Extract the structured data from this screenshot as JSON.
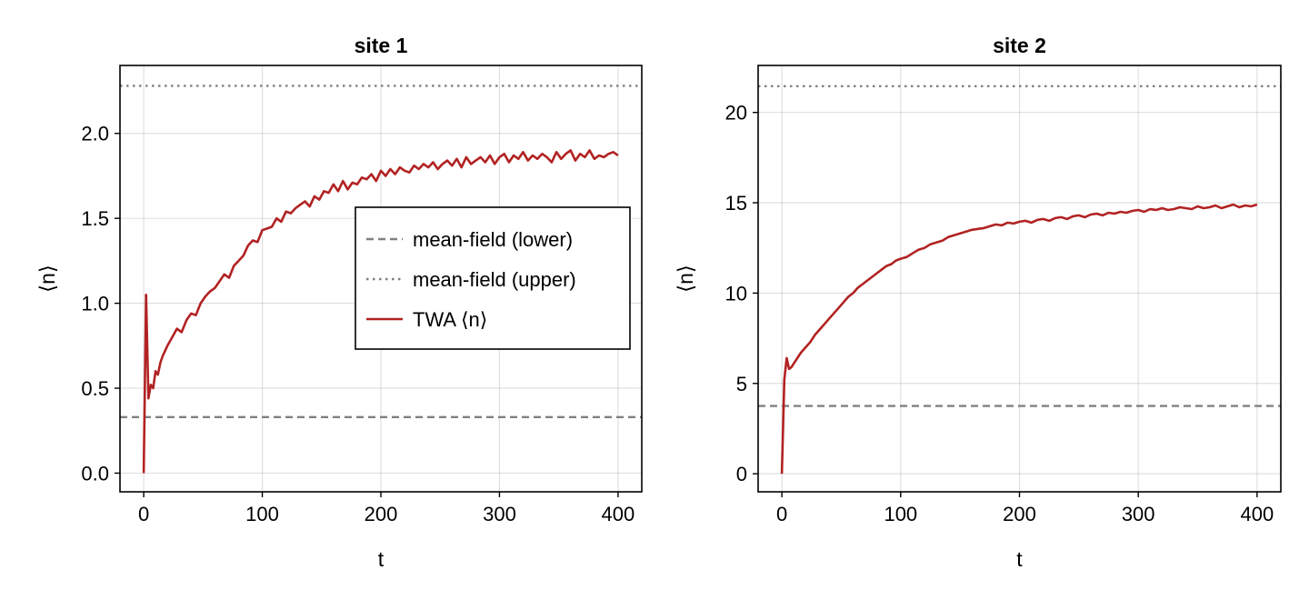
{
  "chart_data": [
    {
      "type": "line",
      "title": "site 1",
      "xlabel": "t",
      "ylabel": "⟨n⟩",
      "xlim": [
        -20,
        420
      ],
      "ylim": [
        -0.11,
        2.4
      ],
      "xticks": [
        0,
        100,
        200,
        300,
        400
      ],
      "xtick_labels": [
        "0",
        "100",
        "200",
        "300",
        "400"
      ],
      "yticks": [
        0.0,
        0.5,
        1.0,
        1.5,
        2.0
      ],
      "ytick_labels": [
        "0.0",
        "0.5",
        "1.0",
        "1.5",
        "2.0"
      ],
      "grid": true,
      "legend_position": "right-center",
      "hlines": [
        {
          "name": "mean-field (lower)",
          "y": 0.33,
          "style": "dashed",
          "color": "#808080"
        },
        {
          "name": "mean-field (upper)",
          "y": 2.28,
          "style": "dotted",
          "color": "#808080"
        }
      ],
      "series": [
        {
          "name": "TWA ⟨n⟩",
          "color": "#b22222",
          "x": [
            0,
            2,
            4,
            6,
            8,
            10,
            12,
            14,
            16,
            18,
            20,
            24,
            28,
            32,
            36,
            40,
            44,
            48,
            52,
            56,
            60,
            64,
            68,
            72,
            76,
            80,
            84,
            88,
            92,
            96,
            100,
            104,
            108,
            112,
            116,
            120,
            124,
            128,
            132,
            136,
            140,
            144,
            148,
            152,
            156,
            160,
            164,
            168,
            172,
            176,
            180,
            184,
            188,
            192,
            196,
            200,
            204,
            208,
            212,
            216,
            220,
            224,
            228,
            232,
            236,
            240,
            244,
            248,
            252,
            256,
            260,
            264,
            268,
            272,
            276,
            280,
            284,
            288,
            292,
            296,
            300,
            304,
            308,
            312,
            316,
            320,
            324,
            328,
            332,
            336,
            340,
            344,
            348,
            352,
            356,
            360,
            364,
            368,
            372,
            376,
            380,
            384,
            388,
            392,
            396,
            400
          ],
          "y": [
            0.0,
            1.05,
            0.44,
            0.52,
            0.5,
            0.6,
            0.58,
            0.65,
            0.69,
            0.72,
            0.75,
            0.8,
            0.85,
            0.83,
            0.9,
            0.94,
            0.93,
            1.0,
            1.04,
            1.07,
            1.09,
            1.13,
            1.17,
            1.15,
            1.22,
            1.25,
            1.28,
            1.34,
            1.37,
            1.36,
            1.43,
            1.44,
            1.45,
            1.5,
            1.48,
            1.54,
            1.53,
            1.56,
            1.58,
            1.6,
            1.57,
            1.63,
            1.61,
            1.66,
            1.65,
            1.7,
            1.66,
            1.72,
            1.67,
            1.71,
            1.7,
            1.74,
            1.73,
            1.76,
            1.72,
            1.78,
            1.75,
            1.79,
            1.76,
            1.8,
            1.78,
            1.77,
            1.81,
            1.79,
            1.82,
            1.8,
            1.83,
            1.79,
            1.82,
            1.84,
            1.81,
            1.85,
            1.8,
            1.86,
            1.82,
            1.84,
            1.86,
            1.83,
            1.87,
            1.82,
            1.86,
            1.88,
            1.83,
            1.87,
            1.85,
            1.89,
            1.84,
            1.87,
            1.85,
            1.88,
            1.86,
            1.83,
            1.89,
            1.85,
            1.88,
            1.9,
            1.84,
            1.88,
            1.86,
            1.9,
            1.85,
            1.87,
            1.86,
            1.88,
            1.89,
            1.87
          ]
        }
      ]
    },
    {
      "type": "line",
      "title": "site 2",
      "xlabel": "t",
      "ylabel": "⟨n⟩",
      "xlim": [
        -20,
        420
      ],
      "ylim": [
        -1.0,
        22.6
      ],
      "xticks": [
        0,
        100,
        200,
        300,
        400
      ],
      "xtick_labels": [
        "0",
        "100",
        "200",
        "300",
        "400"
      ],
      "yticks": [
        0,
        5,
        10,
        15,
        20
      ],
      "ytick_labels": [
        "0",
        "5",
        "10",
        "15",
        "20"
      ],
      "grid": true,
      "hlines": [
        {
          "name": "mean-field (lower)",
          "y": 3.75,
          "style": "dashed",
          "color": "#808080"
        },
        {
          "name": "mean-field (upper)",
          "y": 21.45,
          "style": "dotted",
          "color": "#808080"
        }
      ],
      "series": [
        {
          "name": "TWA ⟨n⟩",
          "color": "#b22222",
          "x": [
            0,
            2,
            4,
            6,
            8,
            10,
            12,
            16,
            20,
            24,
            28,
            32,
            36,
            40,
            44,
            48,
            52,
            56,
            60,
            64,
            68,
            72,
            76,
            80,
            84,
            88,
            92,
            96,
            100,
            105,
            110,
            115,
            120,
            125,
            130,
            135,
            140,
            145,
            150,
            155,
            160,
            165,
            170,
            175,
            180,
            185,
            190,
            195,
            200,
            205,
            210,
            215,
            220,
            225,
            230,
            235,
            240,
            245,
            250,
            255,
            260,
            265,
            270,
            275,
            280,
            285,
            290,
            295,
            300,
            305,
            310,
            315,
            320,
            325,
            330,
            335,
            340,
            345,
            350,
            355,
            360,
            365,
            370,
            375,
            380,
            385,
            390,
            395,
            400
          ],
          "y": [
            0.0,
            5.2,
            6.4,
            5.8,
            5.9,
            6.1,
            6.3,
            6.7,
            7.0,
            7.3,
            7.7,
            8.0,
            8.3,
            8.6,
            8.9,
            9.2,
            9.5,
            9.8,
            10.0,
            10.3,
            10.5,
            10.7,
            10.9,
            11.1,
            11.3,
            11.5,
            11.6,
            11.8,
            11.9,
            12.0,
            12.2,
            12.4,
            12.5,
            12.7,
            12.8,
            12.9,
            13.1,
            13.2,
            13.3,
            13.4,
            13.5,
            13.55,
            13.6,
            13.7,
            13.8,
            13.75,
            13.9,
            13.85,
            13.95,
            14.0,
            13.9,
            14.05,
            14.1,
            14.0,
            14.15,
            14.2,
            14.1,
            14.25,
            14.3,
            14.2,
            14.35,
            14.4,
            14.3,
            14.45,
            14.4,
            14.5,
            14.45,
            14.55,
            14.6,
            14.5,
            14.65,
            14.6,
            14.7,
            14.6,
            14.65,
            14.75,
            14.7,
            14.65,
            14.8,
            14.7,
            14.75,
            14.85,
            14.7,
            14.8,
            14.9,
            14.75,
            14.85,
            14.8,
            14.9
          ]
        }
      ]
    }
  ]
}
